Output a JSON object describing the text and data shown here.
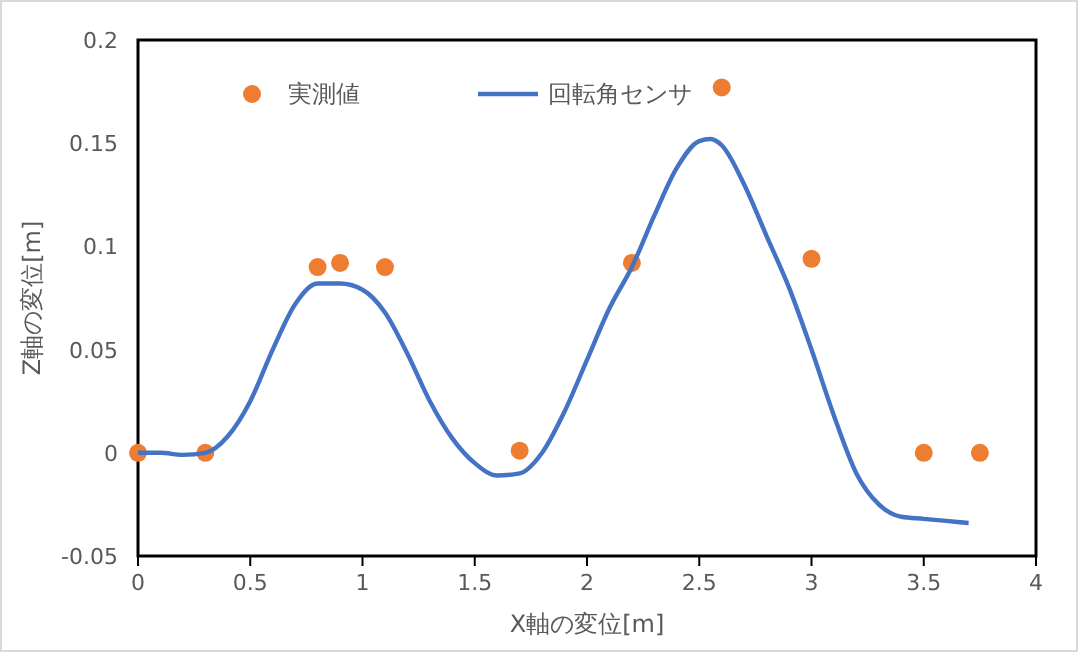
{
  "chart_data": {
    "type": "scatter",
    "xlabel": "X軸の変位[m]",
    "ylabel": "Z軸の変位[m]",
    "xlim": [
      0,
      4
    ],
    "xticks": [
      0,
      0.5,
      1,
      1.5,
      2,
      2.5,
      3,
      3.5,
      4
    ],
    "ylim": [
      -0.05,
      0.2
    ],
    "yticks": [
      -0.05,
      0,
      0.05,
      0.1,
      0.15,
      0.2
    ],
    "grid": false,
    "legend": "top left",
    "series": [
      {
        "name": "実測値",
        "color": "#ed7d31",
        "marker": "circle",
        "x": [
          0,
          0.3,
          0.8,
          0.9,
          1.1,
          1.7,
          2.2,
          2.6,
          3,
          3.5,
          3.75
        ],
        "values": [
          0,
          0,
          0.09,
          0.092,
          0.09,
          0.001,
          0.092,
          0.177,
          0.094,
          0,
          0
        ]
      },
      {
        "name": "回転角センサ",
        "type": "line",
        "color": "#4472c4",
        "marker": "none",
        "line_style": "solid",
        "x": [
          0,
          0.1,
          0.2,
          0.3,
          0.4,
          0.5,
          0.6,
          0.7,
          0.8,
          0.9,
          1.0,
          1.1,
          1.2,
          1.3,
          1.4,
          1.5,
          1.6,
          1.7,
          1.8,
          1.9,
          2.0,
          2.1,
          2.2,
          2.3,
          2.4,
          2.5,
          2.55,
          2.6,
          2.7,
          2.8,
          2.9,
          3.0,
          3.1,
          3.2,
          3.3,
          3.4,
          3.5,
          3.6,
          3.7
        ],
        "values": [
          0,
          0,
          -0.001,
          0,
          0.008,
          0.025,
          0.05,
          0.072,
          0.082,
          0.082,
          0.079,
          0.068,
          0.048,
          0.025,
          0.007,
          -0.005,
          -0.011,
          -0.01,
          0,
          0.02,
          0.045,
          0.07,
          0.09,
          0.115,
          0.138,
          0.151,
          0.152,
          0.149,
          0.13,
          0.105,
          0.08,
          0.05,
          0.018,
          -0.01,
          -0.025,
          -0.031,
          -0.032,
          -0.033,
          -0.034
        ]
      }
    ]
  }
}
